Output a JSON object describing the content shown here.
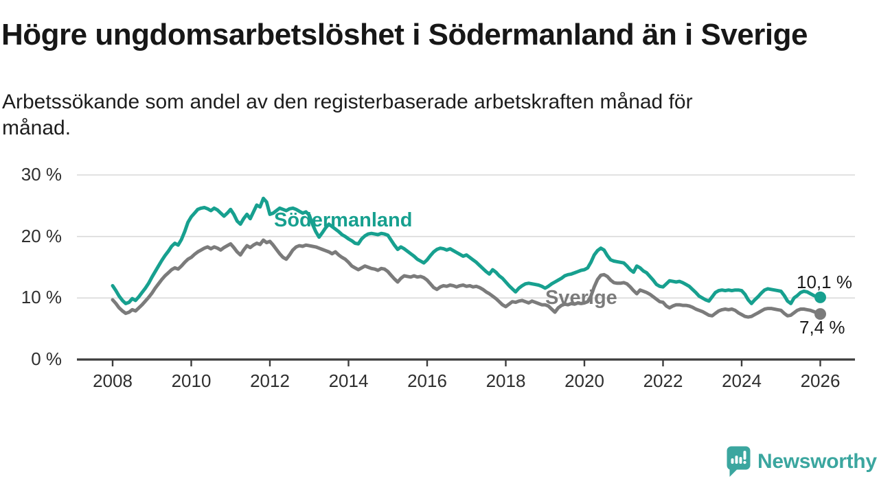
{
  "header": {
    "title": "Högre ungdomsarbetslöshet i Södermanland än i Sverige",
    "subtitle_lines": [
      "Arbetssökande som andel av den registerbaserade arbetskraften månad för",
      "månad."
    ]
  },
  "chart_data": {
    "type": "line",
    "title": "Högre ungdomsarbetslöshet i Södermanland än i Sverige",
    "subtitle": "Arbetssökande som andel av den registerbaserade arbetskraften månad för månad.",
    "xlabel": "",
    "ylabel": "Arbetssökande som andel av den registerbaserade arbetskraften (%)",
    "x_start_year": 2008,
    "x_step_months": 1,
    "x_end_year": 2026,
    "xlim": [
      2007.1,
      2026.9
    ],
    "ylim": [
      0,
      30
    ],
    "grid": "horizontal",
    "x_ticks": [
      2008,
      2010,
      2012,
      2014,
      2016,
      2018,
      2020,
      2022,
      2024,
      2026
    ],
    "y_ticks": [
      {
        "value": 30,
        "label": "30 %"
      },
      {
        "value": 20,
        "label": "20 %"
      },
      {
        "value": 10,
        "label": "10 %"
      },
      {
        "value": 0,
        "label": "0 %"
      }
    ],
    "series": [
      {
        "name": "Södermanland",
        "color": "#17a08f",
        "end_label": "10,1 %",
        "end_value": 10.1,
        "values": [
          12.0,
          11.2,
          10.3,
          9.6,
          9.1,
          9.3,
          9.9,
          9.6,
          10.2,
          10.9,
          11.6,
          12.4,
          13.4,
          14.3,
          15.2,
          16.1,
          16.9,
          17.6,
          18.4,
          18.9,
          18.6,
          19.5,
          20.8,
          22.3,
          23.2,
          23.8,
          24.4,
          24.6,
          24.7,
          24.5,
          24.2,
          24.6,
          24.3,
          23.8,
          23.3,
          23.8,
          24.4,
          23.6,
          22.5,
          22.0,
          22.9,
          23.6,
          22.9,
          24.0,
          25.1,
          24.8,
          26.2,
          25.6,
          23.6,
          23.8,
          24.2,
          24.6,
          24.4,
          24.2,
          24.5,
          24.6,
          24.4,
          24.1,
          23.8,
          24.0,
          23.5,
          22.0,
          20.8,
          19.9,
          20.6,
          21.4,
          22.0,
          21.6,
          21.2,
          20.8,
          20.3,
          20.0,
          19.6,
          19.3,
          18.9,
          18.8,
          19.6,
          20.1,
          20.4,
          20.5,
          20.4,
          20.3,
          20.5,
          20.4,
          20.2,
          19.4,
          18.6,
          17.9,
          18.3,
          18.0,
          17.6,
          17.2,
          16.8,
          16.3,
          16.0,
          15.7,
          16.2,
          16.9,
          17.5,
          17.9,
          18.1,
          18.0,
          17.8,
          18.0,
          17.7,
          17.4,
          17.1,
          16.8,
          17.0,
          16.6,
          16.2,
          15.8,
          15.3,
          14.8,
          14.3,
          13.9,
          14.6,
          14.2,
          13.6,
          13.2,
          12.6,
          12.0,
          11.5,
          11.0,
          11.6,
          12.0,
          12.3,
          12.4,
          12.3,
          12.2,
          12.1,
          11.9,
          11.6,
          11.9,
          12.3,
          12.6,
          12.9,
          13.2,
          13.6,
          13.8,
          13.9,
          14.1,
          14.3,
          14.5,
          14.6,
          14.9,
          15.8,
          17.0,
          17.7,
          18.1,
          17.8,
          16.9,
          16.2,
          16.0,
          15.9,
          15.8,
          15.7,
          15.2,
          14.6,
          14.2,
          15.2,
          14.9,
          14.4,
          14.1,
          13.5,
          12.9,
          12.2,
          11.9,
          11.8,
          12.3,
          12.8,
          12.7,
          12.6,
          12.7,
          12.5,
          12.2,
          11.9,
          11.4,
          10.9,
          10.3,
          10.0,
          9.7,
          9.5,
          10.2,
          10.9,
          11.2,
          11.3,
          11.2,
          11.3,
          11.2,
          11.3,
          11.3,
          11.2,
          10.6,
          9.7,
          9.1,
          9.7,
          10.2,
          10.8,
          11.3,
          11.5,
          11.4,
          11.3,
          11.2,
          11.1,
          10.4,
          9.5,
          9.1,
          10.0,
          10.4,
          10.9,
          11.1,
          11.0,
          10.7,
          10.4,
          10.2,
          10.1
        ]
      },
      {
        "name": "Sverige",
        "color": "#7b7b7b",
        "end_label": "7,4 %",
        "end_value": 7.4,
        "values": [
          9.7,
          9.1,
          8.4,
          7.9,
          7.5,
          7.7,
          8.1,
          7.9,
          8.4,
          8.9,
          9.5,
          10.1,
          10.8,
          11.6,
          12.3,
          13.0,
          13.6,
          14.1,
          14.6,
          14.9,
          14.7,
          15.2,
          15.8,
          16.3,
          16.6,
          17.1,
          17.5,
          17.8,
          18.1,
          18.3,
          18.0,
          18.3,
          18.1,
          17.8,
          18.2,
          18.5,
          18.8,
          18.2,
          17.5,
          17.0,
          17.8,
          18.5,
          18.2,
          18.6,
          18.9,
          18.7,
          19.4,
          19.0,
          19.2,
          18.6,
          17.9,
          17.2,
          16.6,
          16.3,
          17.0,
          17.8,
          18.3,
          18.5,
          18.4,
          18.6,
          18.5,
          18.4,
          18.3,
          18.1,
          17.9,
          17.7,
          17.5,
          17.2,
          17.5,
          17.0,
          16.6,
          16.3,
          15.8,
          15.2,
          14.9,
          14.6,
          14.9,
          15.2,
          15.0,
          14.8,
          14.7,
          14.5,
          14.8,
          14.7,
          14.3,
          13.7,
          13.1,
          12.6,
          13.2,
          13.6,
          13.5,
          13.4,
          13.6,
          13.4,
          13.5,
          13.3,
          12.9,
          12.3,
          11.7,
          11.4,
          11.8,
          12.0,
          11.9,
          12.1,
          12.0,
          11.8,
          12.0,
          12.1,
          11.9,
          12.0,
          11.8,
          11.9,
          11.7,
          11.4,
          11.0,
          10.7,
          10.3,
          9.9,
          9.4,
          8.9,
          8.6,
          9.0,
          9.4,
          9.3,
          9.5,
          9.6,
          9.4,
          9.2,
          9.5,
          9.3,
          9.1,
          8.9,
          8.9,
          8.7,
          8.2,
          7.7,
          8.4,
          8.8,
          9.0,
          8.9,
          9.1,
          9.0,
          9.2,
          9.1,
          9.2,
          9.4,
          10.3,
          11.8,
          13.0,
          13.7,
          13.8,
          13.5,
          12.9,
          12.5,
          12.4,
          12.4,
          12.5,
          12.3,
          11.8,
          11.2,
          10.7,
          11.3,
          11.1,
          10.9,
          10.6,
          10.2,
          9.8,
          9.4,
          9.3,
          8.7,
          8.4,
          8.7,
          8.9,
          8.9,
          8.8,
          8.8,
          8.7,
          8.5,
          8.2,
          8.0,
          7.8,
          7.5,
          7.2,
          7.1,
          7.5,
          7.9,
          8.1,
          8.2,
          8.1,
          8.2,
          8.0,
          7.6,
          7.3,
          7.0,
          6.9,
          7.0,
          7.3,
          7.6,
          7.9,
          8.2,
          8.3,
          8.3,
          8.2,
          8.1,
          8.0,
          7.5,
          7.1,
          7.2,
          7.6,
          8.0,
          8.2,
          8.2,
          8.1,
          8.0,
          7.8,
          7.6,
          7.4
        ]
      }
    ],
    "legend_position": "inline-labels"
  },
  "colors": {
    "grid": "#d9d9d9",
    "axis": "#3d3d3d",
    "tick_text": "#2f2f2f",
    "end_label_text": "#1a1a1a"
  },
  "footer": {
    "brand": "Newsworthy",
    "brand_color": "#3ba69f",
    "logo_icon": "bar-chart-speech-bubble-icon"
  }
}
